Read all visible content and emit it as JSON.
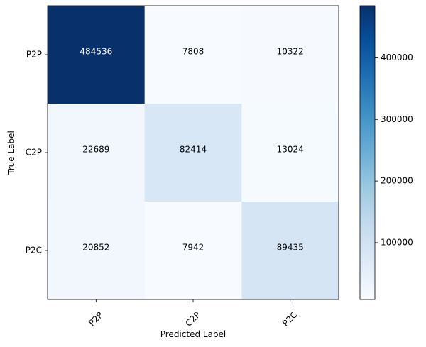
{
  "chart_data": {
    "type": "heatmap",
    "title": "",
    "xlabel": "Predicted Label",
    "ylabel": "True Label",
    "x_categories": [
      "P2P",
      "C2P",
      "P2C"
    ],
    "y_categories": [
      "P2P",
      "C2P",
      "P2C"
    ],
    "values": [
      [
        484536,
        7808,
        10322
      ],
      [
        22689,
        82414,
        13024
      ],
      [
        20852,
        7942,
        89435
      ]
    ],
    "colormap": "Blues",
    "color_range": [
      7808,
      484536
    ],
    "colorbar_ticks": [
      100000,
      200000,
      300000,
      400000
    ],
    "colorbar_tick_labels": [
      "100000",
      "200000",
      "300000",
      "400000"
    ],
    "text_colors": {
      "light": "#ffffff",
      "dark": "#000000"
    }
  }
}
